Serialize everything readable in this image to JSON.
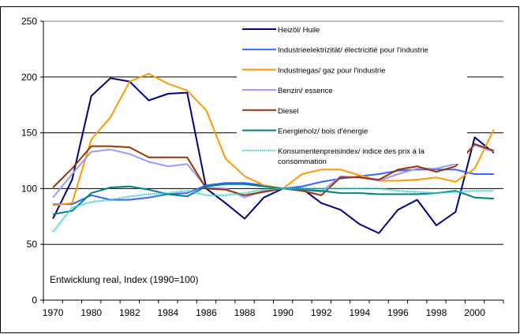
{
  "chart_data": {
    "type": "line",
    "title": "",
    "xlabel": "",
    "ylabel": "",
    "annotation": "Entwicklung real, Index (1990=100)",
    "ylim": [
      0,
      250
    ],
    "yticks": [
      0,
      50,
      100,
      150,
      200,
      250
    ],
    "grid": true,
    "legend_position": "top-center",
    "categories": [
      "1970",
      "1975",
      "1980",
      "1981",
      "1982",
      "1983",
      "1984",
      "1985",
      "1986",
      "1987",
      "1988",
      "1989",
      "1990",
      "1991",
      "1992",
      "1993",
      "1994",
      "1995",
      "1996",
      "1997",
      "1998",
      "1999",
      "2000",
      "2001"
    ],
    "xtick_labels": [
      "1970",
      "",
      "1980",
      "",
      "1982",
      "",
      "1984",
      "",
      "1986",
      "",
      "1988",
      "",
      "1990",
      "",
      "1992",
      "",
      "1994",
      "",
      "1996",
      "",
      "1998",
      "",
      "2000",
      ""
    ],
    "series": [
      {
        "name": "Heizöl/ Huile",
        "color": "#000080",
        "style": "solid",
        "values": [
          73,
          108,
          183,
          199,
          196,
          179,
          185,
          186,
          100,
          87,
          73,
          92,
          100,
          100,
          87,
          81,
          68,
          60,
          81,
          90,
          67,
          79,
          146,
          132
        ]
      },
      {
        "name": "Industrieelektrizität/ électricitié pour l'industrie",
        "color": "#3366ff",
        "style": "solid",
        "values": [
          86,
          86,
          94,
          90,
          90,
          92,
          95,
          96,
          103,
          105,
          105,
          103,
          100,
          102,
          106,
          109,
          111,
          113,
          116,
          117,
          117,
          117,
          113,
          113
        ]
      },
      {
        "name": "Industriegas/ gaz pour l'industrie",
        "color": "#ff9900",
        "style": "solid",
        "values": [
          85,
          87,
          144,
          164,
          196,
          203,
          194,
          188,
          170,
          127,
          111,
          103,
          100,
          113,
          117,
          117,
          112,
          107,
          107,
          108,
          110,
          106,
          118,
          153
        ]
      },
      {
        "name": "Benzin/ essence",
        "color": "#9999ff",
        "style": "solid",
        "values": [
          92,
          113,
          133,
          135,
          131,
          124,
          120,
          122,
          101,
          100,
          92,
          98,
          100,
          99,
          97,
          111,
          110,
          107,
          113,
          118,
          118,
          122,
          139,
          133
        ]
      },
      {
        "name": "Diesel",
        "color": "#993300",
        "style": "solid",
        "values": [
          101,
          118,
          138,
          138,
          137,
          128,
          128,
          128,
          100,
          99,
          94,
          97,
          100,
          98,
          94,
          110,
          110,
          108,
          117,
          120,
          115,
          120,
          140,
          134
        ]
      },
      {
        "name": "Energieholz/ bois d'énergie",
        "color": "#008080",
        "style": "solid",
        "values": [
          77,
          80,
          96,
          101,
          102,
          99,
          95,
          93,
          102,
          104,
          104,
          102,
          100,
          99,
          98,
          96,
          96,
          95,
          95,
          95,
          96,
          98,
          92,
          91
        ]
      },
      {
        "name": "Konsumentenpreisindex/ indice des prix à la consommation",
        "name_lines": [
          "Konsumentenpreisindex/ indice des prix à la",
          "consommation"
        ],
        "color": "#33cccc",
        "style": "dotted",
        "values": [
          61,
          83,
          88,
          90,
          93,
          95,
          96,
          98,
          94,
          94,
          96,
          99,
          100,
          100,
          100,
          100,
          100,
          100,
          98,
          97,
          96,
          97,
          98,
          98
        ]
      }
    ]
  }
}
